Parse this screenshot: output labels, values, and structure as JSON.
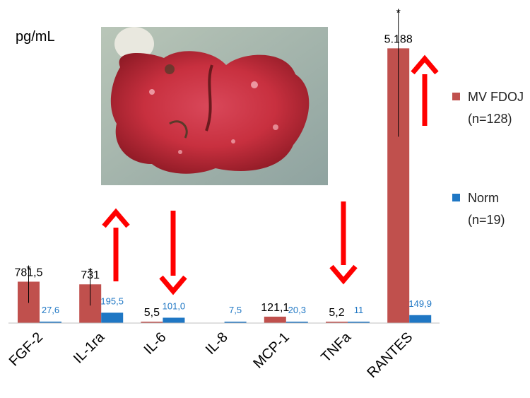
{
  "chart_data": {
    "type": "bar",
    "ylabel": "pg/mL",
    "categories": [
      "FGF-2",
      "IL-1ra",
      "IL-6",
      "IL-8",
      "MCP-1",
      "TNFa",
      "RANTES"
    ],
    "series": [
      {
        "name": "MV FDOJ (n=128)",
        "legend_lines": [
          "MV FDOJ",
          "(n=128)"
        ],
        "color": "#c0504d",
        "values": [
          781.5,
          731,
          5.5,
          null,
          121.1,
          5.2,
          5188
        ],
        "value_labels": [
          "781,5",
          "731",
          "5,5",
          "",
          "121,1",
          "5,2",
          "5.188"
        ],
        "significance": [
          "*",
          "*",
          "",
          "",
          "",
          "",
          "*"
        ]
      },
      {
        "name": "Norm (n=19)",
        "legend_lines": [
          "Norm",
          "(n=19)"
        ],
        "color": "#1f77c4",
        "values": [
          27.6,
          195.5,
          101.0,
          7.5,
          20.3,
          11,
          149.9
        ],
        "value_labels": [
          "27,6",
          "195,5",
          "101,0",
          "7,5",
          "20,3",
          "11",
          "149,9"
        ]
      }
    ],
    "ylim": [
      0,
      5500
    ],
    "y_axis_visible": false,
    "legend_position": "right",
    "arrows": [
      {
        "category": "IL-1ra",
        "direction": "up"
      },
      {
        "category": "IL-6",
        "direction": "down"
      },
      {
        "category": "TNFa",
        "direction": "down"
      },
      {
        "category": "RANTES",
        "direction": "up"
      }
    ],
    "arrow_color": "#ff0000",
    "inset_image": {
      "subject": "tissue-specimen-photo"
    }
  }
}
